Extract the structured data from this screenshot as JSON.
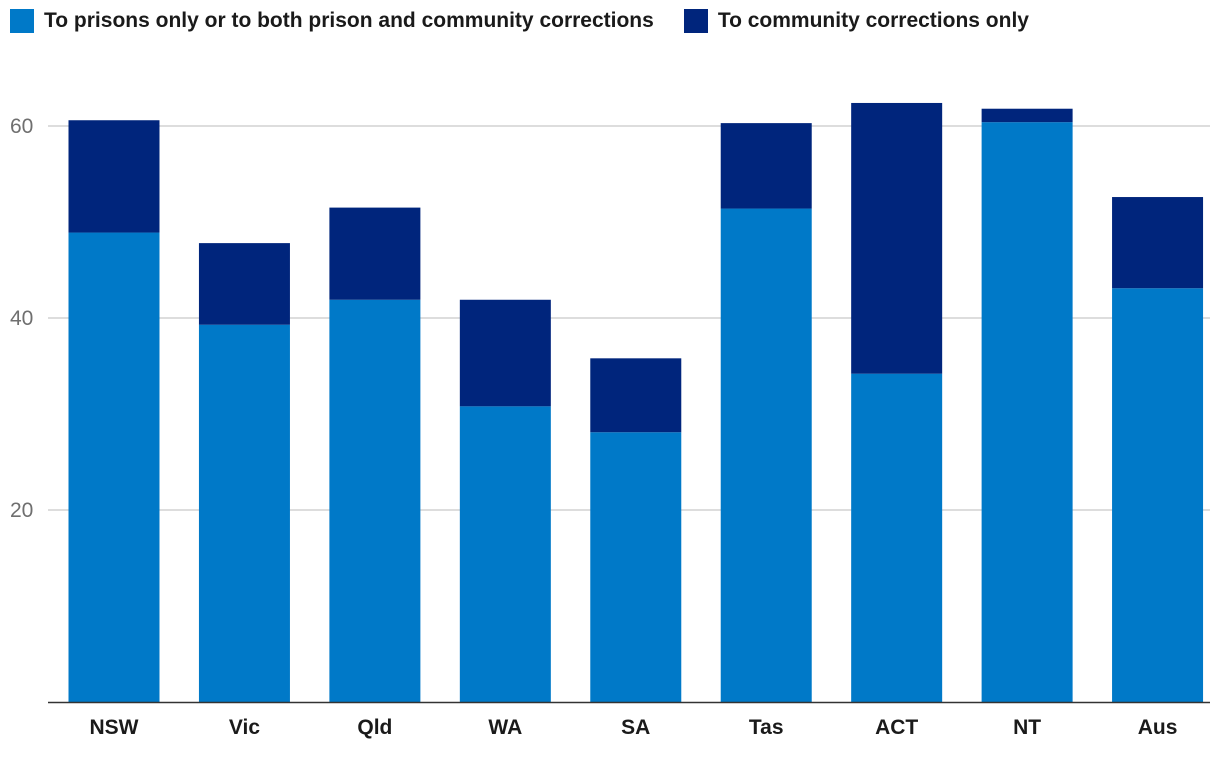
{
  "legend": {
    "series0": "To prisons only or to both prison and community corrections",
    "series1": "To community corrections only"
  },
  "colors": {
    "series0": "#0079C8",
    "series1": "#00257C",
    "grid": "#d2d2d2",
    "axis": "#333333"
  },
  "chart_data": {
    "type": "bar",
    "stacked": true,
    "title": "",
    "xlabel": "",
    "ylabel": "",
    "ylim": [
      0,
      65
    ],
    "yticks": [
      20,
      40,
      60
    ],
    "grid": true,
    "legend_position": "top-left",
    "categories": [
      "NSW",
      "Vic",
      "Qld",
      "WA",
      "SA",
      "Tas",
      "ACT",
      "NT",
      "Aus"
    ],
    "series": [
      {
        "name": "To prisons only or to both prison and community corrections",
        "values": [
          48.9,
          39.3,
          41.9,
          30.8,
          28.1,
          51.4,
          34.2,
          60.4,
          43.1
        ]
      },
      {
        "name": "To community corrections only",
        "values": [
          11.7,
          8.5,
          9.6,
          11.1,
          7.7,
          8.9,
          28.2,
          1.4,
          9.5
        ]
      }
    ]
  }
}
